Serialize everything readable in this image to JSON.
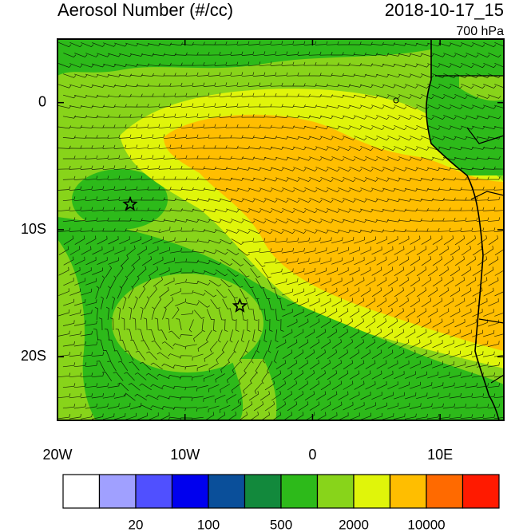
{
  "chart_data": {
    "type": "map",
    "title": "Aerosol Number (#/cc)",
    "date": "2018-10-17_15",
    "level": "700 hPa",
    "xlim": [
      -20,
      15
    ],
    "ylim": [
      -25,
      5
    ],
    "xticks": [
      {
        "value": -20,
        "label": "20W"
      },
      {
        "value": -10,
        "label": "10W"
      },
      0,
      {
        "value": 10,
        "label": "10E"
      }
    ],
    "yticks": [
      0,
      {
        "value": -10,
        "label": "10S"
      },
      {
        "value": -20,
        "label": "20S"
      }
    ],
    "markers": {
      "x": [
        -14.3,
        -5.7
      ],
      "values": [
        -8,
        -16
      ]
    },
    "colorbar": {
      "colors": [
        "#ffffff",
        "#a0a0ff",
        "#5050ff",
        "#0000ee",
        "#0a4f9a",
        "#12893c",
        "#2dba1a",
        "#88d41a",
        "#e0f50a",
        "#ffbe00",
        "#ff6a00",
        "#ff1a00"
      ],
      "labels": [
        20,
        100,
        500,
        2000,
        10000
      ]
    }
  }
}
